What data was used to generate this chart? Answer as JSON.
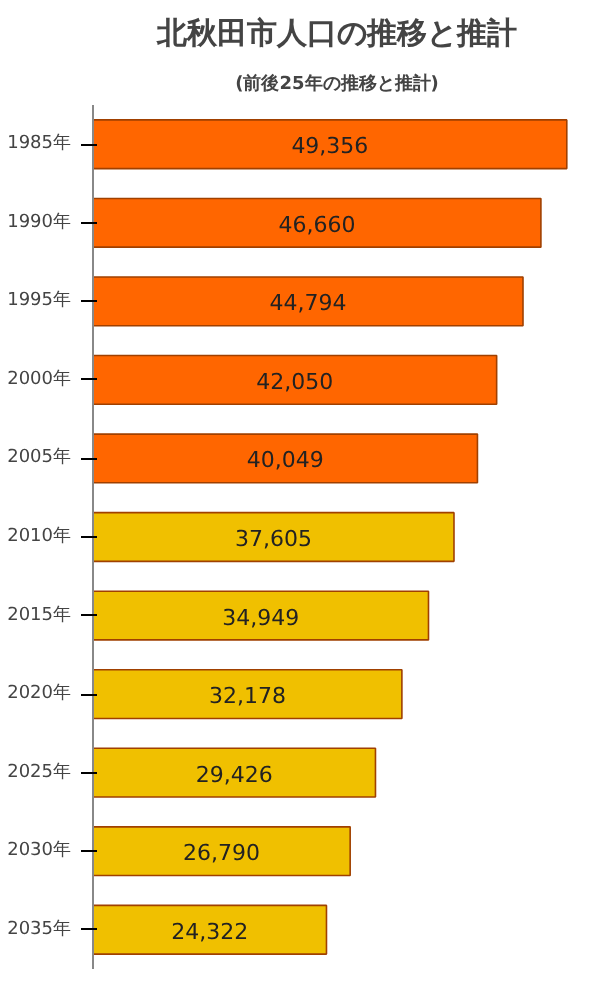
{
  "chart_data": {
    "type": "bar",
    "orientation": "horizontal",
    "title": "北秋田市人口の推移と推計",
    "subtitle": "(前後25年の推移と推計)",
    "categories": [
      "1985年",
      "1990年",
      "1995年",
      "2000年",
      "2005年",
      "2010年",
      "2015年",
      "2020年",
      "2025年",
      "2030年",
      "2035年"
    ],
    "values": [
      49356,
      46660,
      44794,
      42050,
      40049,
      37605,
      34949,
      32178,
      29426,
      26790,
      24322
    ],
    "value_labels": [
      "49,356",
      "46,660",
      "44,794",
      "42,050",
      "40,049",
      "37,605",
      "34,949",
      "32,178",
      "29,426",
      "26,790",
      "24,322"
    ],
    "colors": [
      "#ff6600",
      "#ff6600",
      "#ff6600",
      "#ff6600",
      "#ff6600",
      "#f0c000",
      "#f0c000",
      "#f0c000",
      "#f0c000",
      "#f0c000",
      "#f0c000"
    ]
  }
}
